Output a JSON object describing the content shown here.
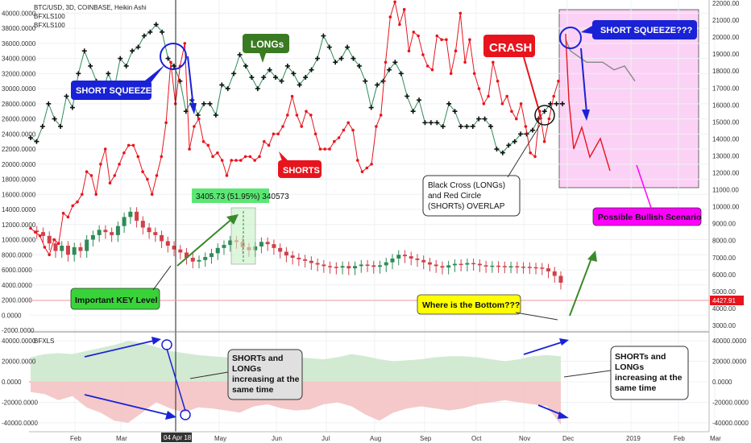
{
  "legend": {
    "symbol": "BTC/USD, 3D, COINBASE, Heikin Ashi",
    "study1": "BFXLS100",
    "study2": "BFXLS100",
    "lower_panel": "BFXLS"
  },
  "price_badge": "4427.91",
  "date_badge": "04 Apr 18",
  "measure_label": "3405.73 (51.95%) 340573",
  "annotations": {
    "short_squeeze": "SHORT SQUEEZE",
    "longs": "LONGs",
    "shorts": "SHORTS",
    "crash": "CRASH",
    "short_squeeze_q": "SHORT SQUEEZE???",
    "key_level": "Important KEY Level",
    "overlap": [
      "Black Cross (LONGs)",
      "and Red Circle",
      "(SHORTs) OVERLAP"
    ],
    "bottom": "Where is the Bottom???",
    "bullish": "Possible Bullish Scenario",
    "lower_text": [
      "SHORTs and",
      "LONGs",
      "increasing at the",
      "same time"
    ]
  },
  "colors": {
    "longs_line": "#2e8b57",
    "shorts_line": "#e8141d",
    "candle_up": "#2e8b57",
    "candle_down": "#d1404a",
    "blue_annot": "#1a22d6",
    "crash_box": "#e8141d",
    "longs_box": "#3a7a22",
    "key_box": "#38d338",
    "bottom_box": "#ffff00",
    "bullish_box": "#ff00ff",
    "scenario_zone": "#fbd2f5",
    "panel_green": "#cde8cd",
    "panel_red": "#f4c3c3"
  },
  "chart_data": {
    "type": "line",
    "x_ticks": [
      "Feb",
      "Mar",
      "04 Apr 18",
      "May",
      "Jun",
      "Jul",
      "Aug",
      "Sep",
      "Oct",
      "Nov",
      "Dec",
      "2019",
      "Feb",
      "Mar"
    ],
    "left_axis": {
      "ticks": [
        "40000.0000",
        "38000.0000",
        "36000.0000",
        "34000.0000",
        "32000.0000",
        "30000.0000",
        "28000.0000",
        "26000.0000",
        "24000.0000",
        "22000.0000",
        "20000.0000",
        "18000.0000",
        "16000.0000",
        "14000.0000",
        "12000.0000",
        "10000.0000",
        "8000.0000",
        "6000.0000",
        "4000.0000",
        "2000.0000",
        "0.0000",
        "-2000.0000"
      ]
    },
    "right_axis": {
      "ticks": [
        "22000.00",
        "21000.00",
        "20000.00",
        "19000.00",
        "18000.00",
        "17000.00",
        "16000.00",
        "15000.00",
        "14000.00",
        "13000.00",
        "12000.00",
        "11000.00",
        "10000.00",
        "9000.00",
        "8000.00",
        "7000.00",
        "6000.00",
        "5000.00",
        "4000.00",
        "3000.00"
      ]
    },
    "lower_left_axis": {
      "ticks": [
        "40000.0000",
        "20000.0000",
        "0.0000",
        "-20000.0000",
        "-40000.0000"
      ]
    },
    "lower_right_axis": {
      "ticks": [
        "40000.0000",
        "20000.0000",
        "0.0000",
        "-20000.0000",
        "-40000.0000"
      ]
    },
    "series": [
      {
        "name": "LONGs",
        "values": [
          23500,
          23000,
          25000,
          28000,
          26000,
          25000,
          29000,
          27500,
          32000,
          35000,
          33000,
          31000,
          29500,
          32000,
          30000,
          34000,
          33000,
          35000,
          35500,
          37000,
          37500,
          38500,
          37500,
          34000,
          33000,
          31000,
          27000,
          28500,
          26500,
          28000,
          28000,
          26500,
          30500,
          30000,
          32000,
          34500,
          33000,
          31500,
          30000,
          31500,
          32500,
          31500,
          31000,
          33000,
          32000,
          30500,
          31500,
          32500,
          34000,
          37000,
          35500,
          33500,
          34000,
          35500,
          34000,
          33000,
          31000,
          27500,
          30500,
          31000,
          32500,
          33500,
          32000,
          29000,
          27000,
          28500,
          25500,
          25500,
          25500,
          25000,
          28000,
          27000,
          25000,
          25000,
          25000,
          26000,
          26000,
          25000,
          22000,
          21500,
          22500,
          23000,
          24000,
          24000,
          24500,
          26000,
          27000,
          28000,
          28000,
          28000
        ]
      },
      {
        "name": "SHORTS",
        "values": [
          11500,
          11000,
          10500,
          9000,
          8000,
          10000,
          9500,
          13500,
          13000,
          14500,
          15000,
          16000,
          19000,
          18500,
          16000,
          20000,
          22000,
          17500,
          18500,
          20000,
          21500,
          22500,
          22500,
          21000,
          19000,
          18000,
          16000,
          18500,
          21000,
          25500,
          33500,
          28000,
          33000,
          36000,
          22000,
          25000,
          26000,
          23000,
          22500,
          21000,
          21500,
          20500,
          18500,
          20500,
          20500,
          20500,
          21000,
          21000,
          20500,
          21000,
          23000,
          22500,
          24000,
          24000,
          25000,
          26500,
          29000,
          26500,
          25000,
          27000,
          26500,
          24000,
          22000,
          22000,
          22000,
          23000,
          23500,
          24500,
          25500,
          24500,
          20500,
          19000,
          19500,
          20000,
          25000,
          26500,
          33500,
          39500,
          41500,
          38500,
          40500,
          35000,
          37500,
          37000,
          34500,
          33000,
          32500,
          37000,
          36500,
          36500,
          32000,
          35000,
          40000,
          33500,
          36500,
          32000,
          30000,
          28000,
          29000,
          33500,
          31000,
          28000,
          29000,
          27000,
          26000,
          28000,
          25000,
          21500,
          21000,
          27000,
          23000,
          26000,
          29000,
          31000
        ]
      },
      {
        "name": "Possible Bullish Scenario",
        "values": [
          36500,
          35000,
          33500,
          33500,
          32500,
          33000,
          31000
        ]
      }
    ],
    "price_series": {
      "name": "BTC/USD",
      "values": [
        11200,
        11000,
        10500,
        9500,
        8500,
        9200,
        8000,
        9000,
        8500,
        10000,
        10600,
        11300,
        11000,
        10600,
        11800,
        13000,
        13700,
        12500,
        11600,
        11000,
        10600,
        9800,
        9200,
        8700,
        8300,
        7600,
        7100,
        7300,
        7700,
        8200,
        8900,
        9300,
        9900,
        9700,
        9000,
        8600,
        9100,
        9700,
        9400,
        8900,
        8400,
        7900,
        7600,
        7400,
        7200,
        6900,
        6700,
        6500,
        6400,
        6300,
        6500,
        6200,
        6500,
        6700,
        6600,
        6400,
        6600,
        7000,
        7500,
        8000,
        7800,
        7500,
        7300,
        7000,
        6700,
        6500,
        6300,
        6600,
        6800,
        6700,
        6900,
        6800,
        6600,
        6500,
        6550,
        6500,
        6450,
        6480,
        6420,
        6400,
        6350,
        6300,
        6200,
        5800,
        5200,
        4300
      ]
    },
    "lower_panel": {
      "name": "BFXLS",
      "longs_values": [
        24000,
        27000,
        28000,
        27000,
        30000,
        33000,
        36000,
        40000,
        38000,
        34000,
        30000,
        28000,
        26000,
        25000,
        24000,
        23000,
        24000,
        26000,
        25000,
        24000,
        23000,
        22000,
        24000,
        27000,
        25000,
        22000,
        20000,
        21000,
        22000,
        24000,
        25000,
        25000,
        24000,
        22000,
        20000,
        22000,
        25000,
        26000,
        25000
      ],
      "shorts_values": [
        -10000,
        -12000,
        -18000,
        -14000,
        -25000,
        -30000,
        -38000,
        -40000,
        -30000,
        -20000,
        -26000,
        -30000,
        -25000,
        -26000,
        -28000,
        -30000,
        -24000,
        -22000,
        -26000,
        -28000,
        -27000,
        -22000,
        -20000,
        -24000,
        -32000,
        -38000,
        -30000,
        -26000,
        -24000,
        -26000,
        -28000,
        -26000,
        -22000,
        -20000,
        -18000,
        -20000,
        -22000,
        -24000,
        -42000
      ],
      "ylim": [
        -40000,
        40000
      ]
    },
    "grid": true,
    "legend_position": "top-left"
  }
}
